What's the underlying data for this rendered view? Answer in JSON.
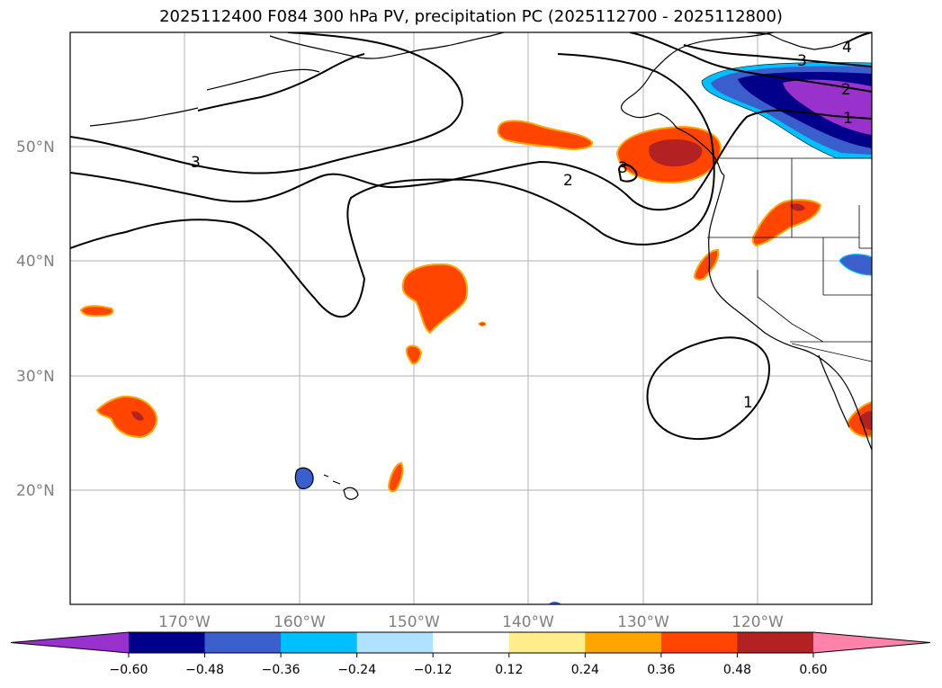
{
  "title": "2025112400 F084 300 hPa PV, precipitation PC (2025112700 - 2025112800)",
  "map": {
    "lon_labels": [
      "170°W",
      "160°W",
      "150°W",
      "140°W",
      "130°W",
      "120°W"
    ],
    "lat_labels": [
      "50°N",
      "40°N",
      "30°N",
      "20°N"
    ],
    "lon_range": [
      -180,
      -110
    ],
    "lat_range": [
      10,
      60
    ],
    "gridlines": true,
    "contour_labels": [
      "4",
      "3",
      "2",
      "1",
      "3",
      "2",
      "3",
      "1"
    ]
  },
  "colorbar": {
    "ticks": [
      "−0.60",
      "−0.48",
      "−0.36",
      "−0.24",
      "−0.12",
      "0.12",
      "0.24",
      "0.36",
      "0.48",
      "0.60"
    ],
    "colors": [
      "#9932cc",
      "#00008b",
      "#3a5fcd",
      "#00bfff",
      "#b0e2ff",
      "#ffffff",
      "#ffec8b",
      "#ffa500",
      "#ff4500",
      "#b22222",
      "#ff82ab"
    ]
  }
}
